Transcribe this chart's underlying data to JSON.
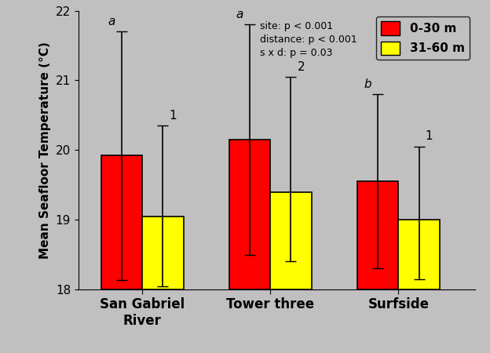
{
  "sites": [
    "San Gabriel\nRiver",
    "Tower three",
    "Surfside"
  ],
  "red_means": [
    19.92,
    20.15,
    19.55
  ],
  "yellow_means": [
    19.05,
    19.4,
    19.0
  ],
  "red_err_up": [
    1.78,
    1.65,
    1.25
  ],
  "red_err_dn": [
    1.78,
    1.65,
    1.25
  ],
  "yellow_err_up": [
    1.3,
    1.65,
    1.05
  ],
  "yellow_err_dn": [
    1.0,
    1.0,
    0.85
  ],
  "red_color": "#ff0000",
  "yellow_color": "#ffff00",
  "bar_edge_color": "#000000",
  "bg_color": "#c0c0c0",
  "fig_bg_color": "#c0c0c0",
  "ylabel": "Mean Seafloor Temperature (°C)",
  "ylim": [
    18,
    22
  ],
  "yticks": [
    18,
    19,
    20,
    21,
    22
  ],
  "legend_labels": [
    "0-30 m",
    "31-60 m"
  ],
  "site_letters": [
    "a",
    "a",
    "b"
  ],
  "yellow_numbers": [
    "1",
    "2",
    "1"
  ],
  "stats_text": "site: p < 0.001\ndistance: p < 0.001\ns x d: p = 0.03",
  "bar_width": 0.32,
  "x_positions": [
    0.5,
    1.5,
    2.5
  ],
  "xlim": [
    0.0,
    3.1
  ]
}
